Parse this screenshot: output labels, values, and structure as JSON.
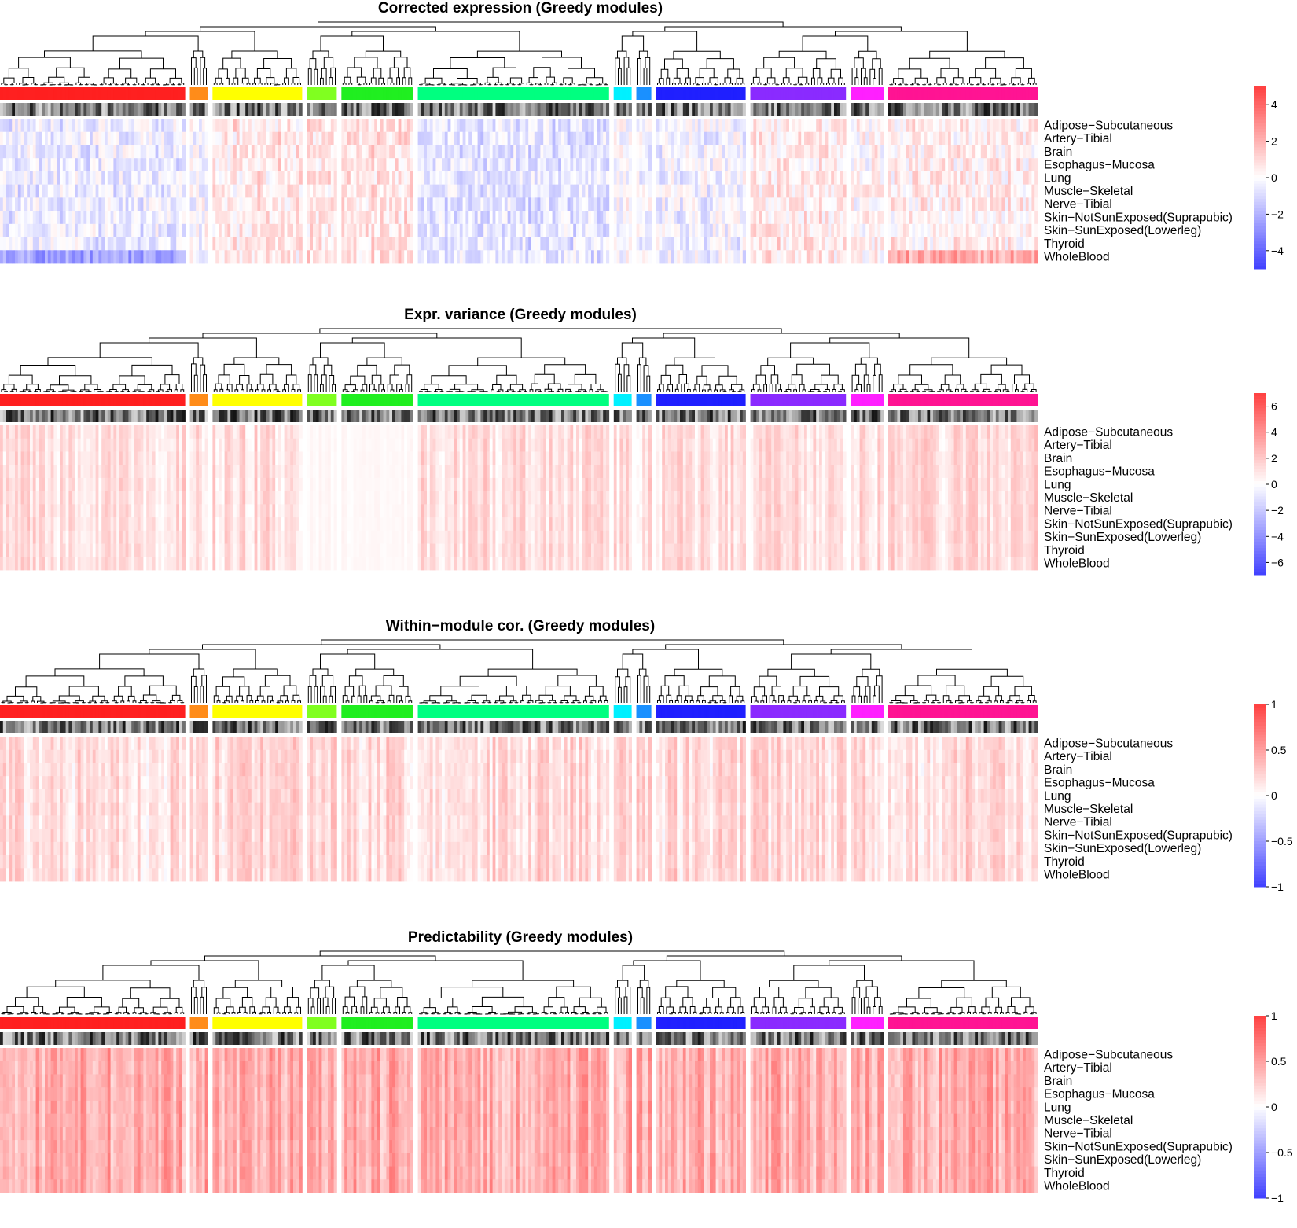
{
  "chart_data": [
    {
      "type": "heatmap",
      "title": "Corrected expression (Greedy modules)",
      "rows": [
        "Adipose−Subcutaneous",
        "Artery−Tibial",
        "Brain",
        "Esophagus−Mucosa",
        "Lung",
        "Muscle−Skeletal",
        "Nerve−Tibial",
        "Skin−NotSunExposed(Suprapubic)",
        "Skin−SunExposed(Lowerleg)",
        "Thyroid",
        "WholeBlood"
      ],
      "colorbar": {
        "min": -5,
        "max": 5,
        "ticks": [
          4,
          2,
          0,
          -2,
          -4
        ],
        "tick_labels": [
          "4",
          "2",
          "0",
          "−2",
          "−4"
        ],
        "low_color": "#4040ff",
        "mid_color": "#ffffff",
        "high_color": "#ff4040"
      },
      "pattern": "diverging"
    },
    {
      "type": "heatmap",
      "title": "Expr. variance (Greedy modules)",
      "rows": [
        "Adipose−Subcutaneous",
        "Artery−Tibial",
        "Brain",
        "Esophagus−Mucosa",
        "Lung",
        "Muscle−Skeletal",
        "Nerve−Tibial",
        "Skin−NotSunExposed(Suprapubic)",
        "Skin−SunExposed(Lowerleg)",
        "Thyroid",
        "WholeBlood"
      ],
      "colorbar": {
        "min": -7,
        "max": 7,
        "ticks": [
          6,
          4,
          2,
          0,
          -2,
          -4,
          -6
        ],
        "tick_labels": [
          "6",
          "4",
          "2",
          "0",
          "−2",
          "−4",
          "−6"
        ],
        "low_color": "#4040ff",
        "mid_color": "#ffffff",
        "high_color": "#ff4040"
      },
      "pattern": "positive_light"
    },
    {
      "type": "heatmap",
      "title": "Within−module cor. (Greedy modules)",
      "rows": [
        "Adipose−Subcutaneous",
        "Artery−Tibial",
        "Brain",
        "Esophagus−Mucosa",
        "Lung",
        "Muscle−Skeletal",
        "Nerve−Tibial",
        "Skin−NotSunExposed(Suprapubic)",
        "Skin−SunExposed(Lowerleg)",
        "Thyroid",
        "WholeBlood"
      ],
      "colorbar": {
        "min": -1,
        "max": 1,
        "ticks": [
          1,
          0.5,
          0,
          -0.5,
          -1
        ],
        "tick_labels": [
          "1",
          "0.5",
          "0",
          "−0.5",
          "−1"
        ],
        "low_color": "#4040ff",
        "mid_color": "#ffffff",
        "high_color": "#ff4040"
      },
      "pattern": "positive_medium"
    },
    {
      "type": "heatmap",
      "title": "Predictability (Greedy modules)",
      "rows": [
        "Adipose−Subcutaneous",
        "Artery−Tibial",
        "Brain",
        "Esophagus−Mucosa",
        "Lung",
        "Muscle−Skeletal",
        "Nerve−Tibial",
        "Skin−NotSunExposed(Suprapubic)",
        "Skin−SunExposed(Lowerleg)",
        "Thyroid",
        "WholeBlood"
      ],
      "colorbar": {
        "min": -1,
        "max": 1,
        "ticks": [
          1,
          0.5,
          0,
          -0.5,
          -1
        ],
        "tick_labels": [
          "1",
          "0.5",
          "0",
          "−0.5",
          "−1"
        ],
        "low_color": "#4040ff",
        "mid_color": "#ffffff",
        "high_color": "#ff4040"
      },
      "pattern": "positive_strong"
    }
  ],
  "modules": [
    {
      "color": "#ff2020",
      "columns": 62
    },
    {
      "color": "#ff8c1a",
      "columns": 6
    },
    {
      "color": "#ffff00",
      "columns": 30
    },
    {
      "color": "#80ff20",
      "columns": 10
    },
    {
      "color": "#20ee20",
      "columns": 24
    },
    {
      "color": "#00ff80",
      "columns": 64
    },
    {
      "color": "#00f0ff",
      "columns": 6
    },
    {
      "color": "#1a90ff",
      "columns": 5
    },
    {
      "color": "#2020ff",
      "columns": 30
    },
    {
      "color": "#8a2bff",
      "columns": 32
    },
    {
      "color": "#ff20ff",
      "columns": 11
    },
    {
      "color": "#ff1493",
      "columns": 50
    }
  ]
}
